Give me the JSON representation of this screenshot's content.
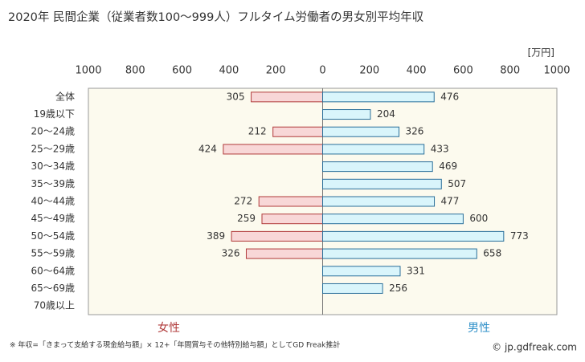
{
  "chart_data": {
    "type": "butterfly-bar",
    "title": "2020年 民間企業（従業者数100〜999人）フルタイム労働者の男女別平均年収",
    "unit": "[万円]",
    "categories": [
      "全体",
      "19歳以下",
      "20〜24歳",
      "25〜29歳",
      "30〜34歳",
      "35〜39歳",
      "40〜44歳",
      "45〜49歳",
      "50〜54歳",
      "55〜59歳",
      "60〜64歳",
      "65〜69歳",
      "70歳以上"
    ],
    "series": [
      {
        "name": "女性",
        "side": "left",
        "color": "#f8d7d7",
        "edge": "#b03a3a",
        "label_color": "#b03a3a",
        "values": [
          305,
          null,
          212,
          424,
          null,
          null,
          272,
          259,
          389,
          326,
          null,
          null,
          null
        ]
      },
      {
        "name": "男性",
        "side": "right",
        "color": "#d9f5fb",
        "edge": "#2a6f9a",
        "label_color": "#2e8fc8",
        "values": [
          476,
          204,
          326,
          433,
          469,
          507,
          477,
          600,
          773,
          658,
          331,
          256,
          null
        ]
      }
    ],
    "xlim": [
      -1000,
      1000
    ],
    "xticks": [
      {
        "value": -1000,
        "label": "1000"
      },
      {
        "value": -800,
        "label": "800"
      },
      {
        "value": -600,
        "label": "600"
      },
      {
        "value": -400,
        "label": "400"
      },
      {
        "value": -200,
        "label": "200"
      },
      0,
      200,
      400,
      600,
      800,
      1000
    ],
    "footnote": "※ 年収=「きまって支給する現金給与額」× 12+「年間賞与その他特別給与額」としてGD Freak推計",
    "source": "© jp.gdfreak.com"
  }
}
